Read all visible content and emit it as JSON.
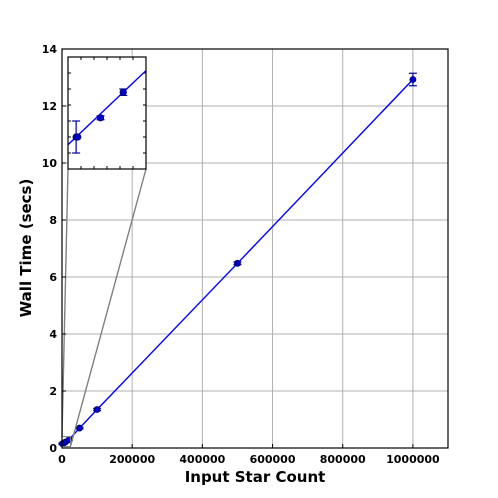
{
  "chart_data": {
    "type": "line",
    "title": "",
    "xlabel": "Input Star Count",
    "ylabel": "Wall Time (secs)",
    "xlim": [
      0,
      1100000
    ],
    "ylim": [
      0,
      14
    ],
    "grid": true,
    "x_ticks": [
      0,
      200000,
      400000,
      600000,
      800000,
      1000000
    ],
    "x_tick_labels": [
      "0",
      "200000",
      "400000",
      "600000",
      "800000",
      "1000000"
    ],
    "y_ticks": [
      0,
      2,
      4,
      6,
      8,
      10,
      12,
      14
    ],
    "y_tick_labels": [
      "0",
      "2",
      "4",
      "6",
      "8",
      "10",
      "12",
      "14"
    ],
    "series": [
      {
        "x": [
          1000,
          5000,
          10000,
          20000,
          50000,
          100000,
          500000,
          1000000
        ],
        "y": [
          0.15,
          0.17,
          0.21,
          0.29,
          0.7,
          1.35,
          6.48,
          12.93
        ],
        "yerr": [
          0.02,
          0.02,
          0.02,
          0.02,
          0.03,
          0.04,
          0.05,
          0.22
        ],
        "color": "#0000ff"
      }
    ],
    "inset": {
      "xlim": [
        0,
        24000
      ],
      "ylim": [
        0.05,
        0.4
      ],
      "grid": false,
      "x": [
        2500,
        3000,
        10000,
        17000
      ],
      "y": [
        0.15,
        0.15,
        0.21,
        0.29
      ],
      "yerr": [
        0.05,
        0.0,
        0.006,
        0.01
      ]
    }
  }
}
